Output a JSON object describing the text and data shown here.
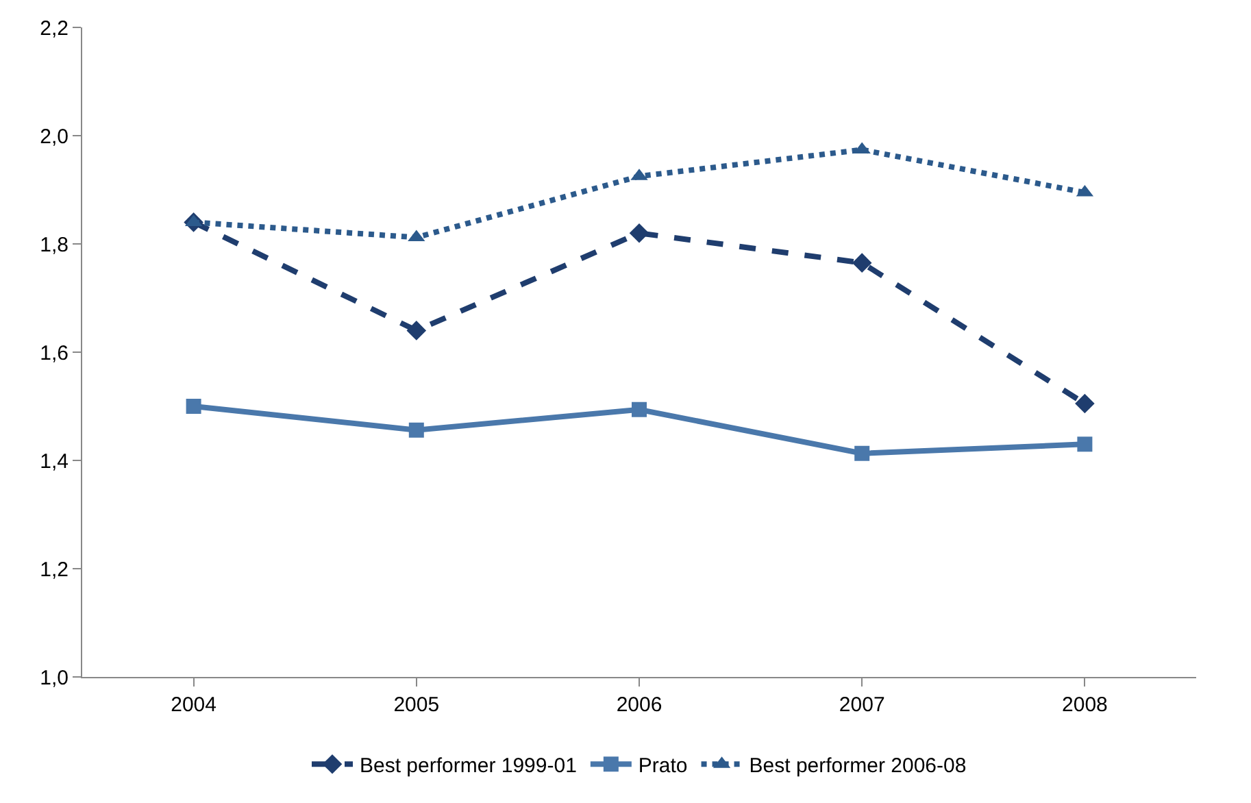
{
  "chart_data": {
    "type": "line",
    "categories": [
      "2004",
      "2005",
      "2006",
      "2007",
      "2008"
    ],
    "series": [
      {
        "name": "Best performer 1999-01",
        "color": "#1f3d6e",
        "values": [
          1.84,
          1.64,
          1.82,
          1.765,
          1.505
        ],
        "marker": "diamond",
        "line_style": "dashed"
      },
      {
        "name": "Prato",
        "color": "#4a78ab",
        "values": [
          1.5,
          1.456,
          1.494,
          1.413,
          1.43
        ],
        "marker": "square",
        "line_style": "solid"
      },
      {
        "name": "Best performer 2006-08",
        "color": "#2c5a8c",
        "values": [
          1.84,
          1.812,
          1.925,
          1.974,
          1.895
        ],
        "marker": "triangle",
        "line_style": "dotted"
      }
    ],
    "ylim": [
      1.0,
      2.2
    ],
    "yticks": [
      {
        "value": 1.0,
        "label": "1,0"
      },
      {
        "value": 1.2,
        "label": "1,2"
      },
      {
        "value": 1.4,
        "label": "1,4"
      },
      {
        "value": 1.6,
        "label": "1,6"
      },
      {
        "value": 1.8,
        "label": "1,8"
      },
      {
        "value": 2.0,
        "label": "2,0"
      },
      {
        "value": 2.2,
        "label": "2,2"
      }
    ],
    "legend": "bottom"
  }
}
